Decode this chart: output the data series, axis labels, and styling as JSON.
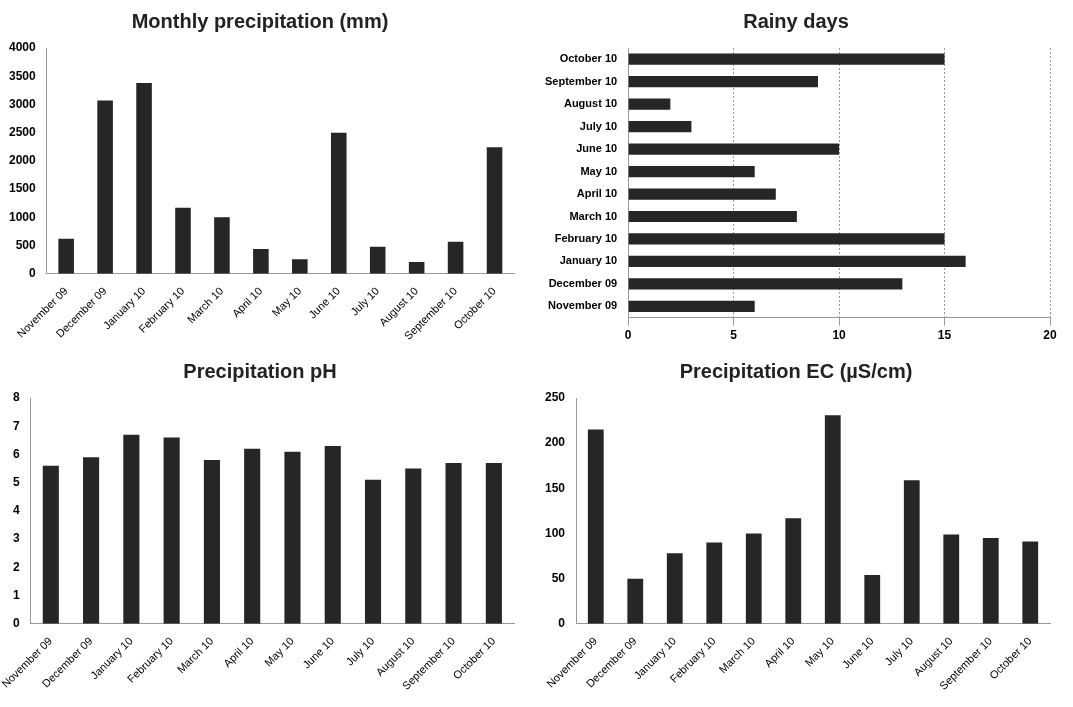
{
  "chart_data": [
    {
      "type": "bar",
      "title": "Monthly precipitation (mm)",
      "categories": [
        "November 09",
        "December 09",
        "January 10",
        "February 10",
        "March 10",
        "April 10",
        "May 10",
        "June 10",
        "July 10",
        "August 10",
        "September 10",
        "October 10"
      ],
      "values": [
        620,
        3070,
        3380,
        1170,
        1000,
        440,
        260,
        2500,
        480,
        210,
        570,
        2240
      ],
      "color": "#262626",
      "ylim": [
        0,
        4000
      ],
      "yticks": [
        0,
        500,
        1000,
        1500,
        2000,
        2500,
        3000,
        3500,
        4000
      ],
      "grid": false,
      "legend": false
    },
    {
      "type": "bar",
      "orientation": "horizontal",
      "title": "Rainy days",
      "categories": [
        "October 10",
        "September 10",
        "August 10",
        "July 10",
        "June 10",
        "May 10",
        "April 10",
        "March 10",
        "February 10",
        "January 10",
        "December 09",
        "November 09"
      ],
      "values": [
        15,
        9,
        2,
        3,
        10,
        6,
        7,
        8,
        15,
        16,
        13,
        6
      ],
      "color": "#262626",
      "xlim": [
        0,
        20
      ],
      "xticks": [
        0,
        5,
        10,
        15,
        20
      ],
      "grid": "x",
      "legend": false
    },
    {
      "type": "bar",
      "title": "Precipitation pH",
      "categories": [
        "November 09",
        "December 09",
        "January 10",
        "February 10",
        "March 10",
        "April 10",
        "May 10",
        "June 10",
        "July 10",
        "August 10",
        "September 10",
        "October 10"
      ],
      "values": [
        5.6,
        5.9,
        6.7,
        6.6,
        5.8,
        6.2,
        6.1,
        6.3,
        5.1,
        5.5,
        5.7,
        5.7
      ],
      "color": "#262626",
      "ylim": [
        0,
        8
      ],
      "yticks": [
        0,
        1,
        2,
        3,
        4,
        5,
        6,
        7,
        8
      ],
      "grid": false,
      "legend": false
    },
    {
      "type": "bar",
      "title": "Precipitation EC (µS/cm)",
      "categories": [
        "November 09",
        "December 09",
        "January 10",
        "February 10",
        "March 10",
        "April 10",
        "May 10",
        "June 10",
        "July 10",
        "August 10",
        "September 10",
        "October 10"
      ],
      "values": [
        215,
        50,
        78,
        90,
        100,
        117,
        231,
        54,
        159,
        99,
        95,
        91
      ],
      "color": "#262626",
      "ylim": [
        0,
        250
      ],
      "yticks": [
        0,
        50,
        100,
        150,
        200,
        250
      ],
      "grid": false,
      "legend": false
    }
  ]
}
